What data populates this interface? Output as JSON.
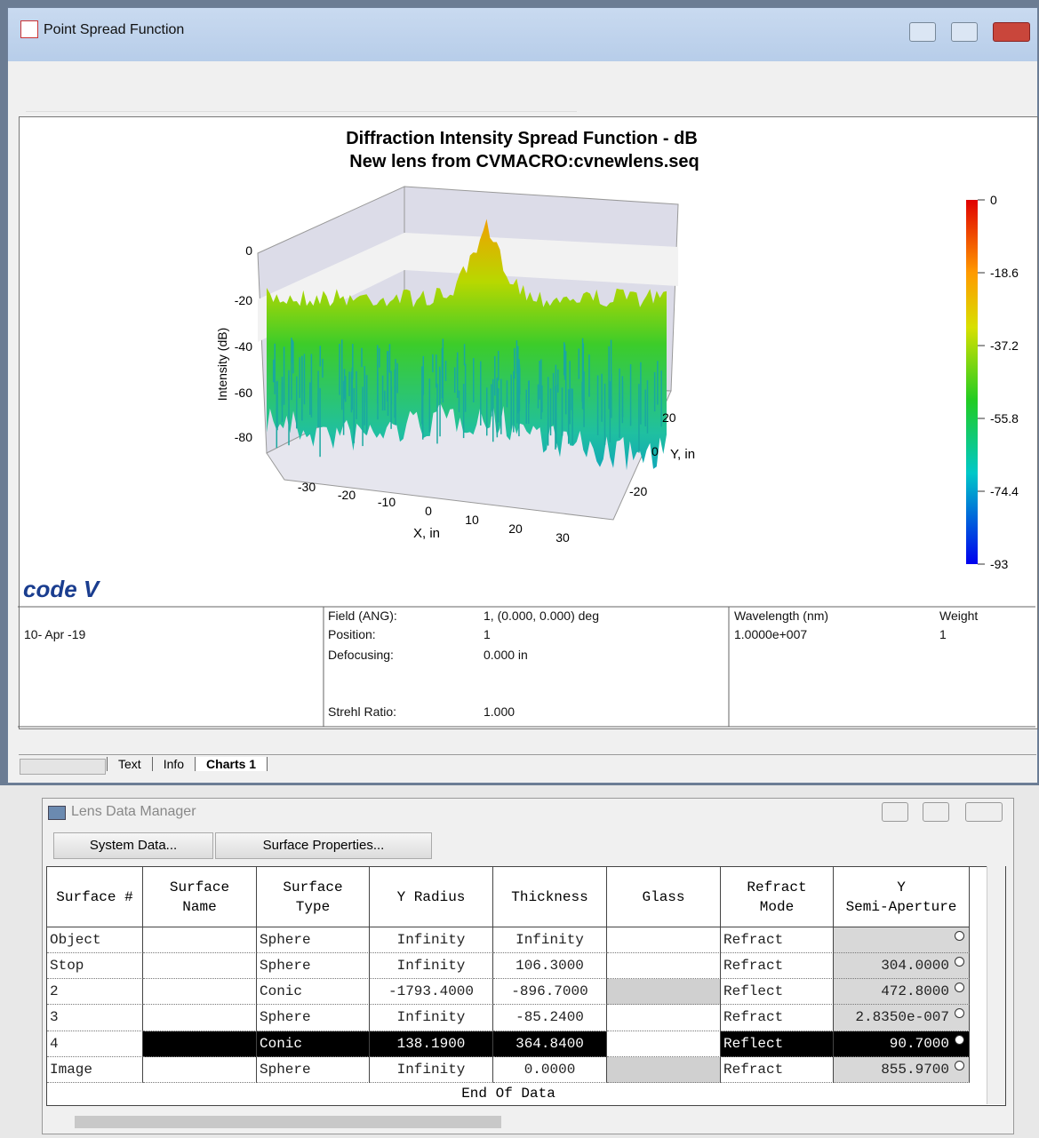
{
  "window": {
    "title": "Point Spread Function"
  },
  "chart": {
    "title": "Diffraction Intensity Spread Function - dB",
    "subtitle": "New lens from CVMACRO:cvnewlens.seq",
    "z_label": "Intensity (dB)",
    "z_ticks": [
      "0",
      "-20",
      "-40",
      "-60",
      "-80"
    ],
    "x_label": "X, in",
    "x_ticks": [
      "-30",
      "-20",
      "-10",
      "0",
      "10",
      "20",
      "30"
    ],
    "y_label": "Y, in",
    "y_ticks": [
      "20",
      "0",
      "-20"
    ],
    "colorbar_ticks": [
      "0",
      "-18.6",
      "-37.2",
      "-55.8",
      "-74.4",
      "-93"
    ],
    "logo": "code V"
  },
  "info": {
    "date": "10- Apr -19",
    "field_label": "Field (ANG):",
    "field_value": "1, (0.000, 0.000) deg",
    "position_label": "Position:",
    "position_value": "1",
    "defocus_label": "Defocusing:",
    "defocus_value": "0.000 in",
    "strehl_label": "Strehl Ratio:",
    "strehl_value": "1.000",
    "wavelength_label": "Wavelength (nm)",
    "wavelength_value": "1.0000e+007",
    "weight_label": "Weight",
    "weight_value": "1"
  },
  "tabs": [
    "Text",
    "Info",
    "Charts 1"
  ],
  "lens_data_manager": {
    "title": "Lens Data Manager",
    "buttons": [
      "System Data...",
      "Surface Properties..."
    ],
    "columns": [
      [
        "Surface #"
      ],
      [
        "Surface",
        "Name"
      ],
      [
        "Surface",
        "Type"
      ],
      [
        "Y Radius"
      ],
      [
        "Thickness"
      ],
      [
        "Glass"
      ],
      [
        "Refract",
        "Mode"
      ],
      [
        "Y",
        "Semi-Aperture"
      ]
    ],
    "rows": [
      [
        "Object",
        null,
        "Sphere",
        "Infinity",
        "Infinity",
        null,
        "Refract",
        null
      ],
      [
        "Stop",
        null,
        "Sphere",
        "Infinity",
        "106.3000",
        null,
        "Refract",
        "304.0000"
      ],
      [
        "2",
        null,
        "Conic",
        "-1793.4000",
        "-896.7000",
        null,
        "Reflect",
        "472.8000"
      ],
      [
        "3",
        null,
        "Sphere",
        "Infinity",
        "-85.2400",
        null,
        "Refract",
        "2.8350e-007"
      ],
      [
        "4",
        null,
        "Conic",
        "138.1900",
        "364.8400",
        null,
        "Reflect",
        "90.7000"
      ],
      [
        "Image",
        null,
        "Sphere",
        "Infinity",
        "0.0000",
        null,
        "Refract",
        "855.9700"
      ]
    ],
    "footer": "End Of Data"
  }
}
